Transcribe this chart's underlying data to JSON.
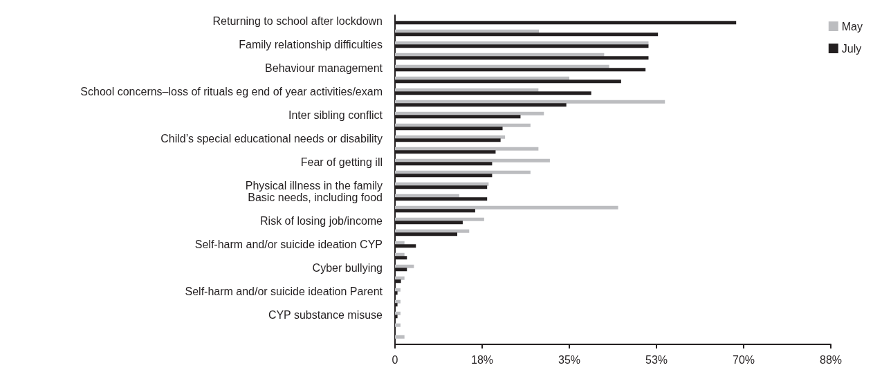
{
  "chart_data": {
    "type": "bar",
    "orientation": "horizontal",
    "categories": [
      "Returning to school after lockdown",
      null,
      "Family relationship difficulties",
      null,
      "Behaviour management",
      null,
      "School concerns–loss of rituals eg end of year activities/exam",
      null,
      "Inter sibling conflict",
      null,
      "Child’s special educational needs or disability",
      null,
      "Fear of getting ill",
      null,
      "Physical illness in the family",
      "Basic needs, including food",
      null,
      "Risk of losing job/income",
      null,
      "Self-harm and/or suicide ideation CYP",
      null,
      "Cyber bullying",
      null,
      "Self-harm and/or suicide ideation Parent",
      null,
      "CYP substance misuse",
      null,
      null
    ],
    "series": [
      {
        "name": "May",
        "color": "#bcbdc0",
        "values": [
          null,
          28.9,
          50.9,
          42.0,
          43.0,
          35.0,
          28.8,
          54.2,
          29.9,
          27.2,
          22.1,
          28.8,
          31.1,
          27.2,
          18.8,
          12.9,
          44.8,
          17.9,
          14.9,
          1.9,
          1.9,
          3.8,
          1.9,
          1.1,
          1.1,
          1.1,
          1.1,
          1.9
        ]
      },
      {
        "name": "July",
        "color": "#231f20",
        "values": [
          68.5,
          52.8,
          50.9,
          50.9,
          50.3,
          45.4,
          39.4,
          34.4,
          25.2,
          21.6,
          21.2,
          20.2,
          19.5,
          19.5,
          18.5,
          18.5,
          16.1,
          13.6,
          12.5,
          4.2,
          2.4,
          2.4,
          1.2,
          0.5,
          0.5,
          0.5,
          null,
          null
        ]
      }
    ],
    "xlim": [
      0,
      87.5
    ],
    "xticks": [
      0,
      {
        "value": 17.5,
        "label": "18%"
      },
      {
        "value": 35,
        "label": "35%"
      },
      {
        "value": 52.5,
        "label": "53%"
      },
      {
        "value": 70,
        "label": "70%"
      },
      {
        "value": 87.5,
        "label": "88%"
      }
    ],
    "grid": false,
    "legend": "top right"
  }
}
